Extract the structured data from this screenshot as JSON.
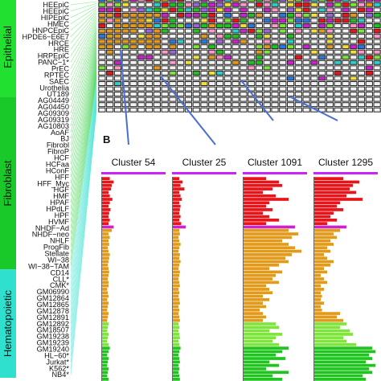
{
  "panel_b_label": "B",
  "groups": [
    {
      "name": "Epithelial",
      "color": "#22e030"
    },
    {
      "name": "Fibroblast",
      "color": "#19c92a"
    },
    {
      "name": "Hematopoietic",
      "color": "#2fe0ce"
    }
  ],
  "cell_lines": [
    {
      "name": "HEEpiC",
      "group": "Epithelial",
      "row_color": "#e8141a"
    },
    {
      "name": "HEEpiC",
      "group": "Epithelial",
      "row_color": "#e8141a"
    },
    {
      "name": "HIPEpiC",
      "group": "Epithelial",
      "row_color": "#e8141a"
    },
    {
      "name": "HMEC",
      "group": "Epithelial",
      "row_color": "#e8141a"
    },
    {
      "name": "HNPCEpiC",
      "group": "Epithelial",
      "row_color": "#e8141a"
    },
    {
      "name": "HPDE6−E6E7",
      "group": "Epithelial",
      "row_color": "#e8141a"
    },
    {
      "name": "HRCE",
      "group": "Epithelial",
      "row_color": "#e8141a"
    },
    {
      "name": "HRE",
      "group": "Epithelial",
      "row_color": "#e8141a"
    },
    {
      "name": "HRPEpiC",
      "group": "Epithelial",
      "row_color": "#e8141a"
    },
    {
      "name": "PANC−1*",
      "group": "Epithelial",
      "row_color": "#e8141a"
    },
    {
      "name": "PrEC",
      "group": "Epithelial",
      "row_color": "#e8141a"
    },
    {
      "name": "RPTEC",
      "group": "Epithelial",
      "row_color": "#e8141a"
    },
    {
      "name": "SAEC",
      "group": "Epithelial",
      "row_color": "#e8141a"
    },
    {
      "name": "Urothelia",
      "group": "Epithelial",
      "row_color": "#e8141a"
    },
    {
      "name": "UT189",
      "group": "Epithelial",
      "row_color": "#cc22cc"
    },
    {
      "name": "AG04449",
      "group": "Fibroblast",
      "row_color": "#e39a1a"
    },
    {
      "name": "AG04450",
      "group": "Fibroblast",
      "row_color": "#e39a1a"
    },
    {
      "name": "AG09309",
      "group": "Fibroblast",
      "row_color": "#e39a1a"
    },
    {
      "name": "AG09319",
      "group": "Fibroblast",
      "row_color": "#e39a1a"
    },
    {
      "name": "AG10803",
      "group": "Fibroblast",
      "row_color": "#e39a1a"
    },
    {
      "name": "AoAF",
      "group": "Fibroblast",
      "row_color": "#e39a1a"
    },
    {
      "name": "BJ",
      "group": "Fibroblast",
      "row_color": "#e39a1a"
    },
    {
      "name": "Fibrobl",
      "group": "Fibroblast",
      "row_color": "#e39a1a"
    },
    {
      "name": "FibroP",
      "group": "Fibroblast",
      "row_color": "#e39a1a"
    },
    {
      "name": "HCF",
      "group": "Fibroblast",
      "row_color": "#e39a1a"
    },
    {
      "name": "HCFaa",
      "group": "Fibroblast",
      "row_color": "#e39a1a"
    },
    {
      "name": "HConF",
      "group": "Fibroblast",
      "row_color": "#e39a1a"
    },
    {
      "name": "HFF",
      "group": "Fibroblast",
      "row_color": "#e39a1a"
    },
    {
      "name": "HFF_Myc",
      "group": "Fibroblast",
      "row_color": "#e39a1a"
    },
    {
      "name": "HGF",
      "group": "Fibroblast",
      "row_color": "#e39a1a"
    },
    {
      "name": "HMF",
      "group": "Fibroblast",
      "row_color": "#e39a1a"
    },
    {
      "name": "HPAF",
      "group": "Fibroblast",
      "row_color": "#e39a1a"
    },
    {
      "name": "HPdLF",
      "group": "Fibroblast",
      "row_color": "#e39a1a"
    },
    {
      "name": "HPF",
      "group": "Fibroblast",
      "row_color": "#e39a1a"
    },
    {
      "name": "HVMF",
      "group": "Fibroblast",
      "row_color": "#e39a1a"
    },
    {
      "name": "NHDF−Ad",
      "group": "Fibroblast",
      "row_color": "#e39a1a"
    },
    {
      "name": "NHDF−neo",
      "group": "Fibroblast",
      "row_color": "#e39a1a"
    },
    {
      "name": "NHLF",
      "group": "Fibroblast",
      "row_color": "#e39a1a"
    },
    {
      "name": "ProgFib",
      "group": "Fibroblast",
      "row_color": "#e39a1a"
    },
    {
      "name": "Stellate",
      "group": "Fibroblast",
      "row_color": "#e39a1a"
    },
    {
      "name": "WI−38",
      "group": "Fibroblast",
      "row_color": "#e39a1a"
    },
    {
      "name": "WI−38−TAM",
      "group": "Fibroblast",
      "row_color": "#e39a1a"
    },
    {
      "name": "CD14",
      "group": "Hematopoietic",
      "row_color": "#7ee63a"
    },
    {
      "name": "CLL*",
      "group": "Hematopoietic",
      "row_color": "#7ee63a"
    },
    {
      "name": "CMK*",
      "group": "Hematopoietic",
      "row_color": "#7ee63a"
    },
    {
      "name": "GM06990",
      "group": "Hematopoietic",
      "row_color": "#7ee63a"
    },
    {
      "name": "GM12864",
      "group": "Hematopoietic",
      "row_color": "#7ee63a"
    },
    {
      "name": "GM12865",
      "group": "Hematopoietic",
      "row_color": "#7ee63a"
    },
    {
      "name": "GM12878",
      "group": "Hematopoietic",
      "row_color": "#7ee63a"
    },
    {
      "name": "GM12891",
      "group": "Hematopoietic",
      "row_color": "#1fc41f"
    },
    {
      "name": "GM12892",
      "group": "Hematopoietic",
      "row_color": "#1fc41f"
    },
    {
      "name": "GM18507",
      "group": "Hematopoietic",
      "row_color": "#1fc41f"
    },
    {
      "name": "GM19238",
      "group": "Hematopoietic",
      "row_color": "#1fc41f"
    },
    {
      "name": "GM19239",
      "group": "Hematopoietic",
      "row_color": "#1fc41f"
    },
    {
      "name": "GM19240",
      "group": "Hematopoietic",
      "row_color": "#1fc41f"
    },
    {
      "name": "HL−60*",
      "group": "Hematopoietic",
      "row_color": "#1fc41f"
    },
    {
      "name": "Jurkat*",
      "group": "Hematopoietic",
      "row_color": "#1fc41f"
    },
    {
      "name": "K562*",
      "group": "Hematopoietic",
      "row_color": "#1fc41f"
    },
    {
      "name": "NB4*",
      "group": "Hematopoietic",
      "row_color": "#1fc41f"
    }
  ],
  "chart_data": {
    "type": "bar",
    "orientation": "horizontal",
    "clusters": [
      {
        "title": "Cluster 54",
        "color": "#cc22ff",
        "values": [
          0.12,
          0.18,
          0.15,
          0.14,
          0.1,
          0.12,
          0.16,
          0.12,
          0.1,
          0.13,
          0.11,
          0.1,
          0.12,
          0.1,
          0.18,
          0.15,
          0.1,
          0.12,
          0.1,
          0.11,
          0.09,
          0.1,
          0.12,
          0.11,
          0.1,
          0.09,
          0.1,
          0.11,
          0.1,
          0.09,
          0.1,
          0.1,
          0.08,
          0.09,
          0.1,
          0.08,
          0.1,
          0.09,
          0.08,
          0.1,
          0.09,
          0.08,
          0.1,
          0.09,
          0.08,
          0.1,
          0.09,
          0.08,
          0.1,
          0.12,
          0.1,
          0.08,
          0.1,
          0.09,
          0.08,
          0.1,
          0.09,
          0.08,
          0.1
        ]
      },
      {
        "title": "Cluster 25",
        "color": "#cc22ff",
        "values": [
          0.1,
          0.15,
          0.12,
          0.18,
          0.1,
          0.12,
          0.14,
          0.1,
          0.12,
          0.11,
          0.1,
          0.12,
          0.1,
          0.13,
          0.2,
          0.1,
          0.11,
          0.09,
          0.1,
          0.12,
          0.1,
          0.09,
          0.11,
          0.1,
          0.12,
          0.1,
          0.09,
          0.11,
          0.1,
          0.09,
          0.1,
          0.11,
          0.09,
          0.1,
          0.09,
          0.1,
          0.11,
          0.09,
          0.1,
          0.09,
          0.1,
          0.11,
          0.09,
          0.1,
          0.09,
          0.1,
          0.11,
          0.09,
          0.1,
          0.12,
          0.1,
          0.09,
          0.1,
          0.11,
          0.09,
          0.1,
          0.09,
          0.1,
          0.11
        ]
      },
      {
        "title": "Cluster 1091",
        "color": "#cc22ff",
        "values": [
          0.35,
          0.55,
          0.6,
          0.45,
          0.3,
          0.5,
          0.7,
          0.4,
          0.35,
          0.45,
          0.3,
          0.4,
          0.55,
          0.35,
          0.8,
          0.7,
          0.85,
          0.75,
          0.6,
          0.7,
          0.8,
          0.9,
          0.75,
          0.65,
          0.7,
          0.55,
          0.4,
          0.6,
          0.5,
          0.45,
          0.55,
          0.35,
          0.4,
          0.45,
          0.3,
          0.4,
          0.3,
          0.35,
          0.25,
          0.3,
          0.35,
          0.3,
          0.5,
          0.55,
          0.4,
          0.6,
          0.5,
          0.45,
          0.55,
          0.7,
          0.6,
          0.5,
          0.65,
          0.4,
          0.55,
          0.35,
          0.7,
          0.45,
          0.6
        ]
      },
      {
        "title": "Cluster 1295",
        "color": "#cc22ff",
        "values": [
          0.45,
          0.7,
          0.6,
          0.55,
          0.65,
          0.5,
          0.75,
          0.4,
          0.35,
          0.45,
          0.3,
          0.25,
          0.35,
          0.2,
          0.5,
          0.4,
          0.3,
          0.35,
          0.25,
          0.3,
          0.2,
          0.25,
          0.15,
          0.2,
          0.3,
          0.25,
          0.15,
          0.2,
          0.1,
          0.15,
          0.2,
          0.1,
          0.15,
          0.1,
          0.12,
          0.1,
          0.15,
          0.1,
          0.12,
          0.4,
          0.35,
          0.45,
          0.5,
          0.4,
          0.55,
          0.6,
          0.45,
          0.5,
          0.65,
          0.9,
          0.95,
          0.85,
          0.9,
          0.8,
          0.95,
          0.85,
          0.9,
          0.75,
          0.8
        ]
      }
    ],
    "xlim": [
      0,
      1
    ]
  },
  "heatmap": {
    "rows": 22,
    "cols": 36,
    "grid_color": "#222222",
    "empty_fill": "#f2f2f2",
    "palette": [
      "#e8141a",
      "#e39a1a",
      "#7ee63a",
      "#1fc41f",
      "#cc22cc",
      "#2a78e0",
      "#33cccc",
      "#ff99cc",
      "#f0e040",
      "#9a66e0",
      "#f2f2f2"
    ]
  },
  "connector_color": "#4a6fd0"
}
